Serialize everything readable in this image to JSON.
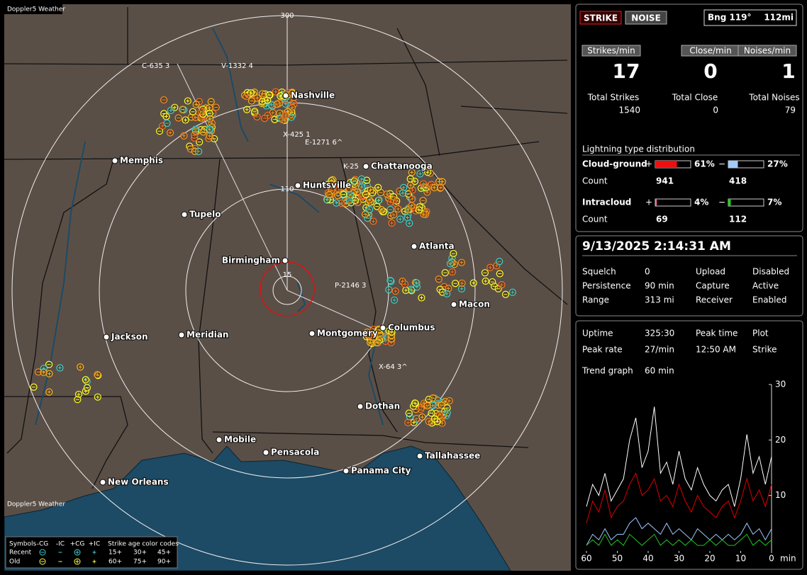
{
  "map": {
    "title": "Doppler5 Weather",
    "range_rings": [
      "300",
      "110",
      "15"
    ],
    "cities": [
      "Nashville",
      "Memphis",
      "Chattanooga",
      "Huntsville",
      "Tupelo",
      "Birmingham",
      "Atlanta",
      "Macon",
      "Columbus",
      "Montgomery",
      "Jackson",
      "Meridian",
      "Dothan",
      "Mobile",
      "Pensacola",
      "Panama City",
      "Tallahassee",
      "New Orleans"
    ],
    "storms": [
      "C-635 3",
      "V-1332 4",
      "E-1271 6^",
      "X-425 1",
      "K-25",
      "P-2146 3",
      "X-64 3^"
    ],
    "legend": {
      "symbols_label": "Symbols",
      "symbols": [
        "-CG",
        "-IC",
        "+CG",
        "+IC"
      ],
      "age_label": "Strike age color codes",
      "rows": [
        {
          "name": "Recent",
          "color": "#40d0d0",
          "ages": [
            "15+",
            "30+",
            "45+"
          ],
          "age_colors": [
            "#ffff40",
            "#ffb020",
            "#ff9030"
          ]
        },
        {
          "name": "Old",
          "color": "#ffff40",
          "ages": [
            "60+",
            "75+",
            "90+"
          ],
          "age_colors": [
            "#ff9020",
            "#ff7020",
            "#ff5030"
          ]
        }
      ]
    }
  },
  "header": {
    "strike_button": "STRIKE",
    "noise_button": "NOISE",
    "bearing": "Bng 119°",
    "distance": "112mi"
  },
  "rates": [
    {
      "label": "Strikes/min",
      "value": 17
    },
    {
      "label": "Close/min",
      "value": 0
    },
    {
      "label": "Noises/min",
      "value": 1
    }
  ],
  "totals": [
    {
      "label": "Total Strikes",
      "value": 1540
    },
    {
      "label": "Total Close",
      "value": 0
    },
    {
      "label": "Total Noises",
      "value": 79
    }
  ],
  "distribution": {
    "title": "Lightning type distribution",
    "count_label": "Count",
    "rows": [
      {
        "name": "Cloud-ground",
        "pos_sign": "+",
        "pos_pct": {
          "value": 61,
          "label": "61%"
        },
        "pos_color": "#ee1010",
        "neg_sign": "−",
        "neg_pct": {
          "value": 27,
          "label": "27%"
        },
        "neg_color": "#a0ccff",
        "pos_count": 941,
        "neg_count": 418
      },
      {
        "name": "Intracloud",
        "pos_sign": "+",
        "pos_pct": {
          "value": 4,
          "label": "4%"
        },
        "pos_color": "#ff70b0",
        "neg_sign": "−",
        "neg_pct": {
          "value": 7,
          "label": "7%"
        },
        "neg_color": "#20d020",
        "pos_count": 69,
        "neg_count": 112
      }
    ]
  },
  "status": {
    "datetime": "9/13/2025 2:14:31 AM",
    "rows": [
      [
        "Squelch",
        "0",
        "Upload",
        "Disabled"
      ],
      [
        "Persistence",
        "90 min",
        "Capture",
        "Active"
      ],
      [
        "Range",
        "313 mi",
        "Receiver",
        "Enabled"
      ]
    ],
    "status_colors": [
      "#c8c8c8",
      "#20e020",
      "#20e020"
    ]
  },
  "stats": {
    "rows": [
      [
        "Uptime",
        "325:30",
        "Peak time",
        "Plot"
      ],
      [
        "Peak rate",
        "27/min",
        "12:50 AM",
        "Strike"
      ]
    ],
    "trend_label": "Trend graph",
    "trend_window": "60 min"
  },
  "trend_chart": {
    "type": "line",
    "xlabel": "min",
    "xlim": [
      60,
      0
    ],
    "xticks": [
      60,
      50,
      40,
      30,
      20,
      10,
      0
    ],
    "ylim": [
      0,
      30
    ],
    "yticks": [
      10,
      20,
      30
    ],
    "x": [
      60,
      58,
      56,
      54,
      52,
      50,
      48,
      46,
      44,
      42,
      40,
      38,
      36,
      34,
      32,
      30,
      28,
      26,
      24,
      22,
      20,
      18,
      16,
      14,
      12,
      10,
      8,
      6,
      4,
      2,
      0
    ],
    "series": [
      {
        "color": "#ffffff",
        "values": [
          8,
          12,
          10,
          14,
          9,
          11,
          13,
          20,
          24,
          15,
          18,
          26,
          14,
          16,
          12,
          18,
          13,
          11,
          15,
          12,
          10,
          9,
          11,
          12,
          8,
          13,
          21,
          14,
          17,
          12,
          17
        ]
      },
      {
        "color": "#e00000",
        "values": [
          5,
          9,
          7,
          11,
          6,
          8,
          9,
          12,
          14,
          10,
          11,
          13,
          9,
          10,
          8,
          12,
          9,
          7,
          10,
          8,
          7,
          6,
          8,
          9,
          6,
          9,
          13,
          9,
          11,
          8,
          12
        ]
      },
      {
        "color": "#a0c8ff",
        "values": [
          1,
          3,
          2,
          4,
          2,
          3,
          3,
          5,
          6,
          4,
          5,
          4,
          3,
          5,
          3,
          4,
          3,
          2,
          4,
          3,
          2,
          3,
          2,
          3,
          2,
          3,
          5,
          3,
          4,
          2,
          4
        ]
      },
      {
        "color": "#20c020",
        "values": [
          1,
          2,
          1,
          3,
          1,
          2,
          1,
          3,
          2,
          1,
          2,
          3,
          1,
          2,
          1,
          2,
          1,
          2,
          1,
          1,
          2,
          1,
          2,
          1,
          1,
          2,
          3,
          1,
          2,
          1,
          2
        ]
      }
    ]
  }
}
